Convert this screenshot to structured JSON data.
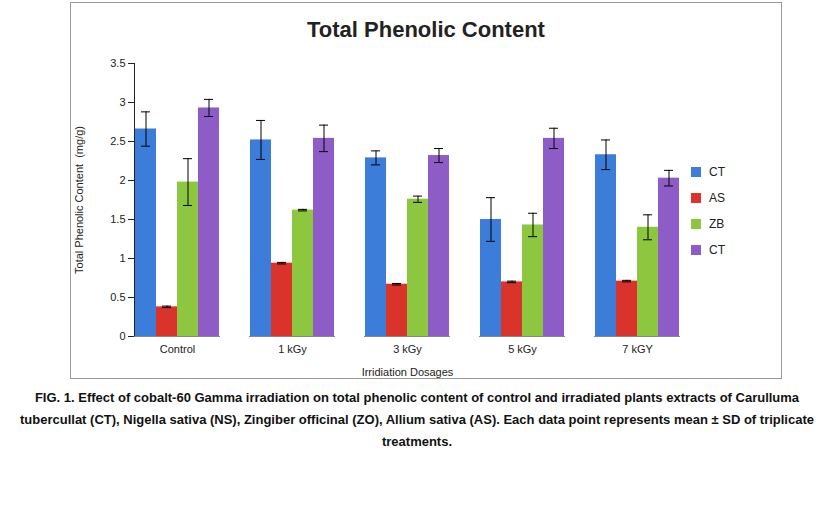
{
  "chart_data": {
    "type": "bar",
    "title": "Total Phenolic Content",
    "x_label": "Irridiation Dosages",
    "y_label": "Total Phenolic Content  (mg/g)",
    "caption": "FIG. 1. Effect of cobalt-60 Gamma irradiation on total phenolic content of control and irradiated plants extracts of Carulluma tubercullat (CT), Nigella sativa (NS), Zingiber officinal (ZO), Allium sativa (AS). Each data point represents mean ± SD of triplicate treatments.",
    "categories": [
      "Control",
      "1 kGy",
      "3 kGy",
      "5 kGy",
      "7 kGY"
    ],
    "series": [
      {
        "name": "CT",
        "color": "#3b7dd8",
        "values": [
          2.66,
          2.52,
          2.29,
          1.5,
          2.33
        ],
        "errors": [
          0.22,
          0.25,
          0.09,
          0.28,
          0.19
        ]
      },
      {
        "name": "AS",
        "color": "#d9332b",
        "values": [
          0.38,
          0.94,
          0.67,
          0.7,
          0.71
        ],
        "errors": [
          0.01,
          0.01,
          0.01,
          0.01,
          0.01
        ]
      },
      {
        "name": "ZB",
        "color": "#8dc63f",
        "values": [
          1.98,
          1.62,
          1.76,
          1.43,
          1.4
        ],
        "errors": [
          0.3,
          0.01,
          0.04,
          0.15,
          0.16
        ]
      },
      {
        "name": "CT",
        "color": "#8e5cc6",
        "values": [
          2.93,
          2.54,
          2.32,
          2.54,
          2.03
        ],
        "errors": [
          0.11,
          0.17,
          0.09,
          0.13,
          0.1
        ]
      }
    ],
    "ylim": [
      0,
      3.5
    ],
    "yticks": [
      0,
      0.5,
      1,
      1.5,
      2,
      2.5,
      3,
      3.5
    ],
    "grid": false,
    "legend": "right"
  }
}
